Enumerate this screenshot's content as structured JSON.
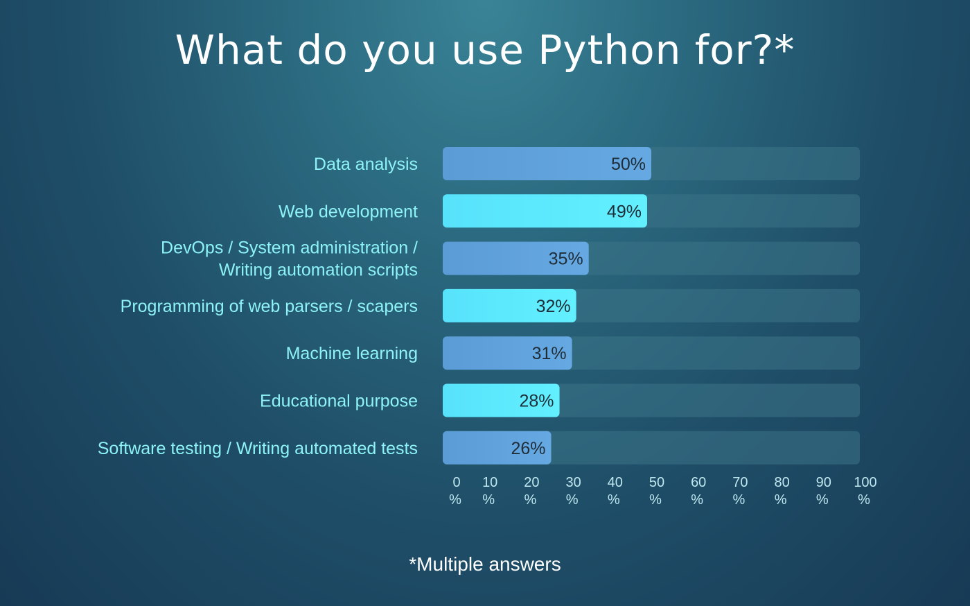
{
  "chart_data": {
    "type": "bar",
    "orientation": "horizontal",
    "title": "What do you use Python for?*",
    "footnote": "*Multiple answers",
    "categories": [
      [
        "Data analysis"
      ],
      [
        "Web development"
      ],
      [
        "DevOps / System administration /",
        "Writing automation scripts"
      ],
      [
        "Programming of web parsers / scapers"
      ],
      [
        "Machine learning"
      ],
      [
        "Educational purpose"
      ],
      [
        "Software testing / Writing automated tests"
      ]
    ],
    "values": [
      50,
      49,
      35,
      32,
      31,
      28,
      26
    ],
    "value_labels": [
      "50%",
      "49%",
      "35%",
      "32%",
      "31%",
      "28%",
      "26%"
    ],
    "xlim": [
      0,
      100
    ],
    "x_ticks": [
      0,
      10,
      20,
      30,
      40,
      50,
      60,
      70,
      80,
      90,
      100
    ],
    "x_tick_unit": "%",
    "grid": false,
    "colors": {
      "bar_blue": "#5fa3dc",
      "bar_cyan": "#5cecff",
      "track": "#3d7589",
      "category_text": "#8ef3f6",
      "value_text": "#1f2d38"
    }
  }
}
